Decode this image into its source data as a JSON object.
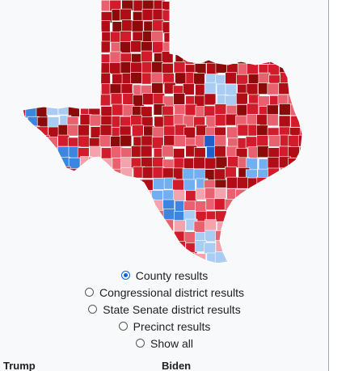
{
  "map": {
    "title": "",
    "colors": {
      "r_dark": "#8b0a0a",
      "r_strong": "#b10d16",
      "r_mid": "#d31c2b",
      "r_light": "#e8616e",
      "r_pale": "#f3a3ab",
      "d_pale": "#a9cdf2",
      "d_light": "#73aef0",
      "d_mid": "#3c86e0",
      "d_strong": "#1f5fc8",
      "border": "#ffffff"
    },
    "layers": [
      "county-fill",
      "county-borders"
    ]
  },
  "options": [
    {
      "label": "County results",
      "checked": true
    },
    {
      "label": "Congressional district results",
      "checked": false
    },
    {
      "label": "State Senate district results",
      "checked": false
    },
    {
      "label": "Precinct results",
      "checked": false
    },
    {
      "label": "Show all",
      "checked": false
    }
  ],
  "legend": {
    "left": "Trump",
    "right": "Biden"
  }
}
